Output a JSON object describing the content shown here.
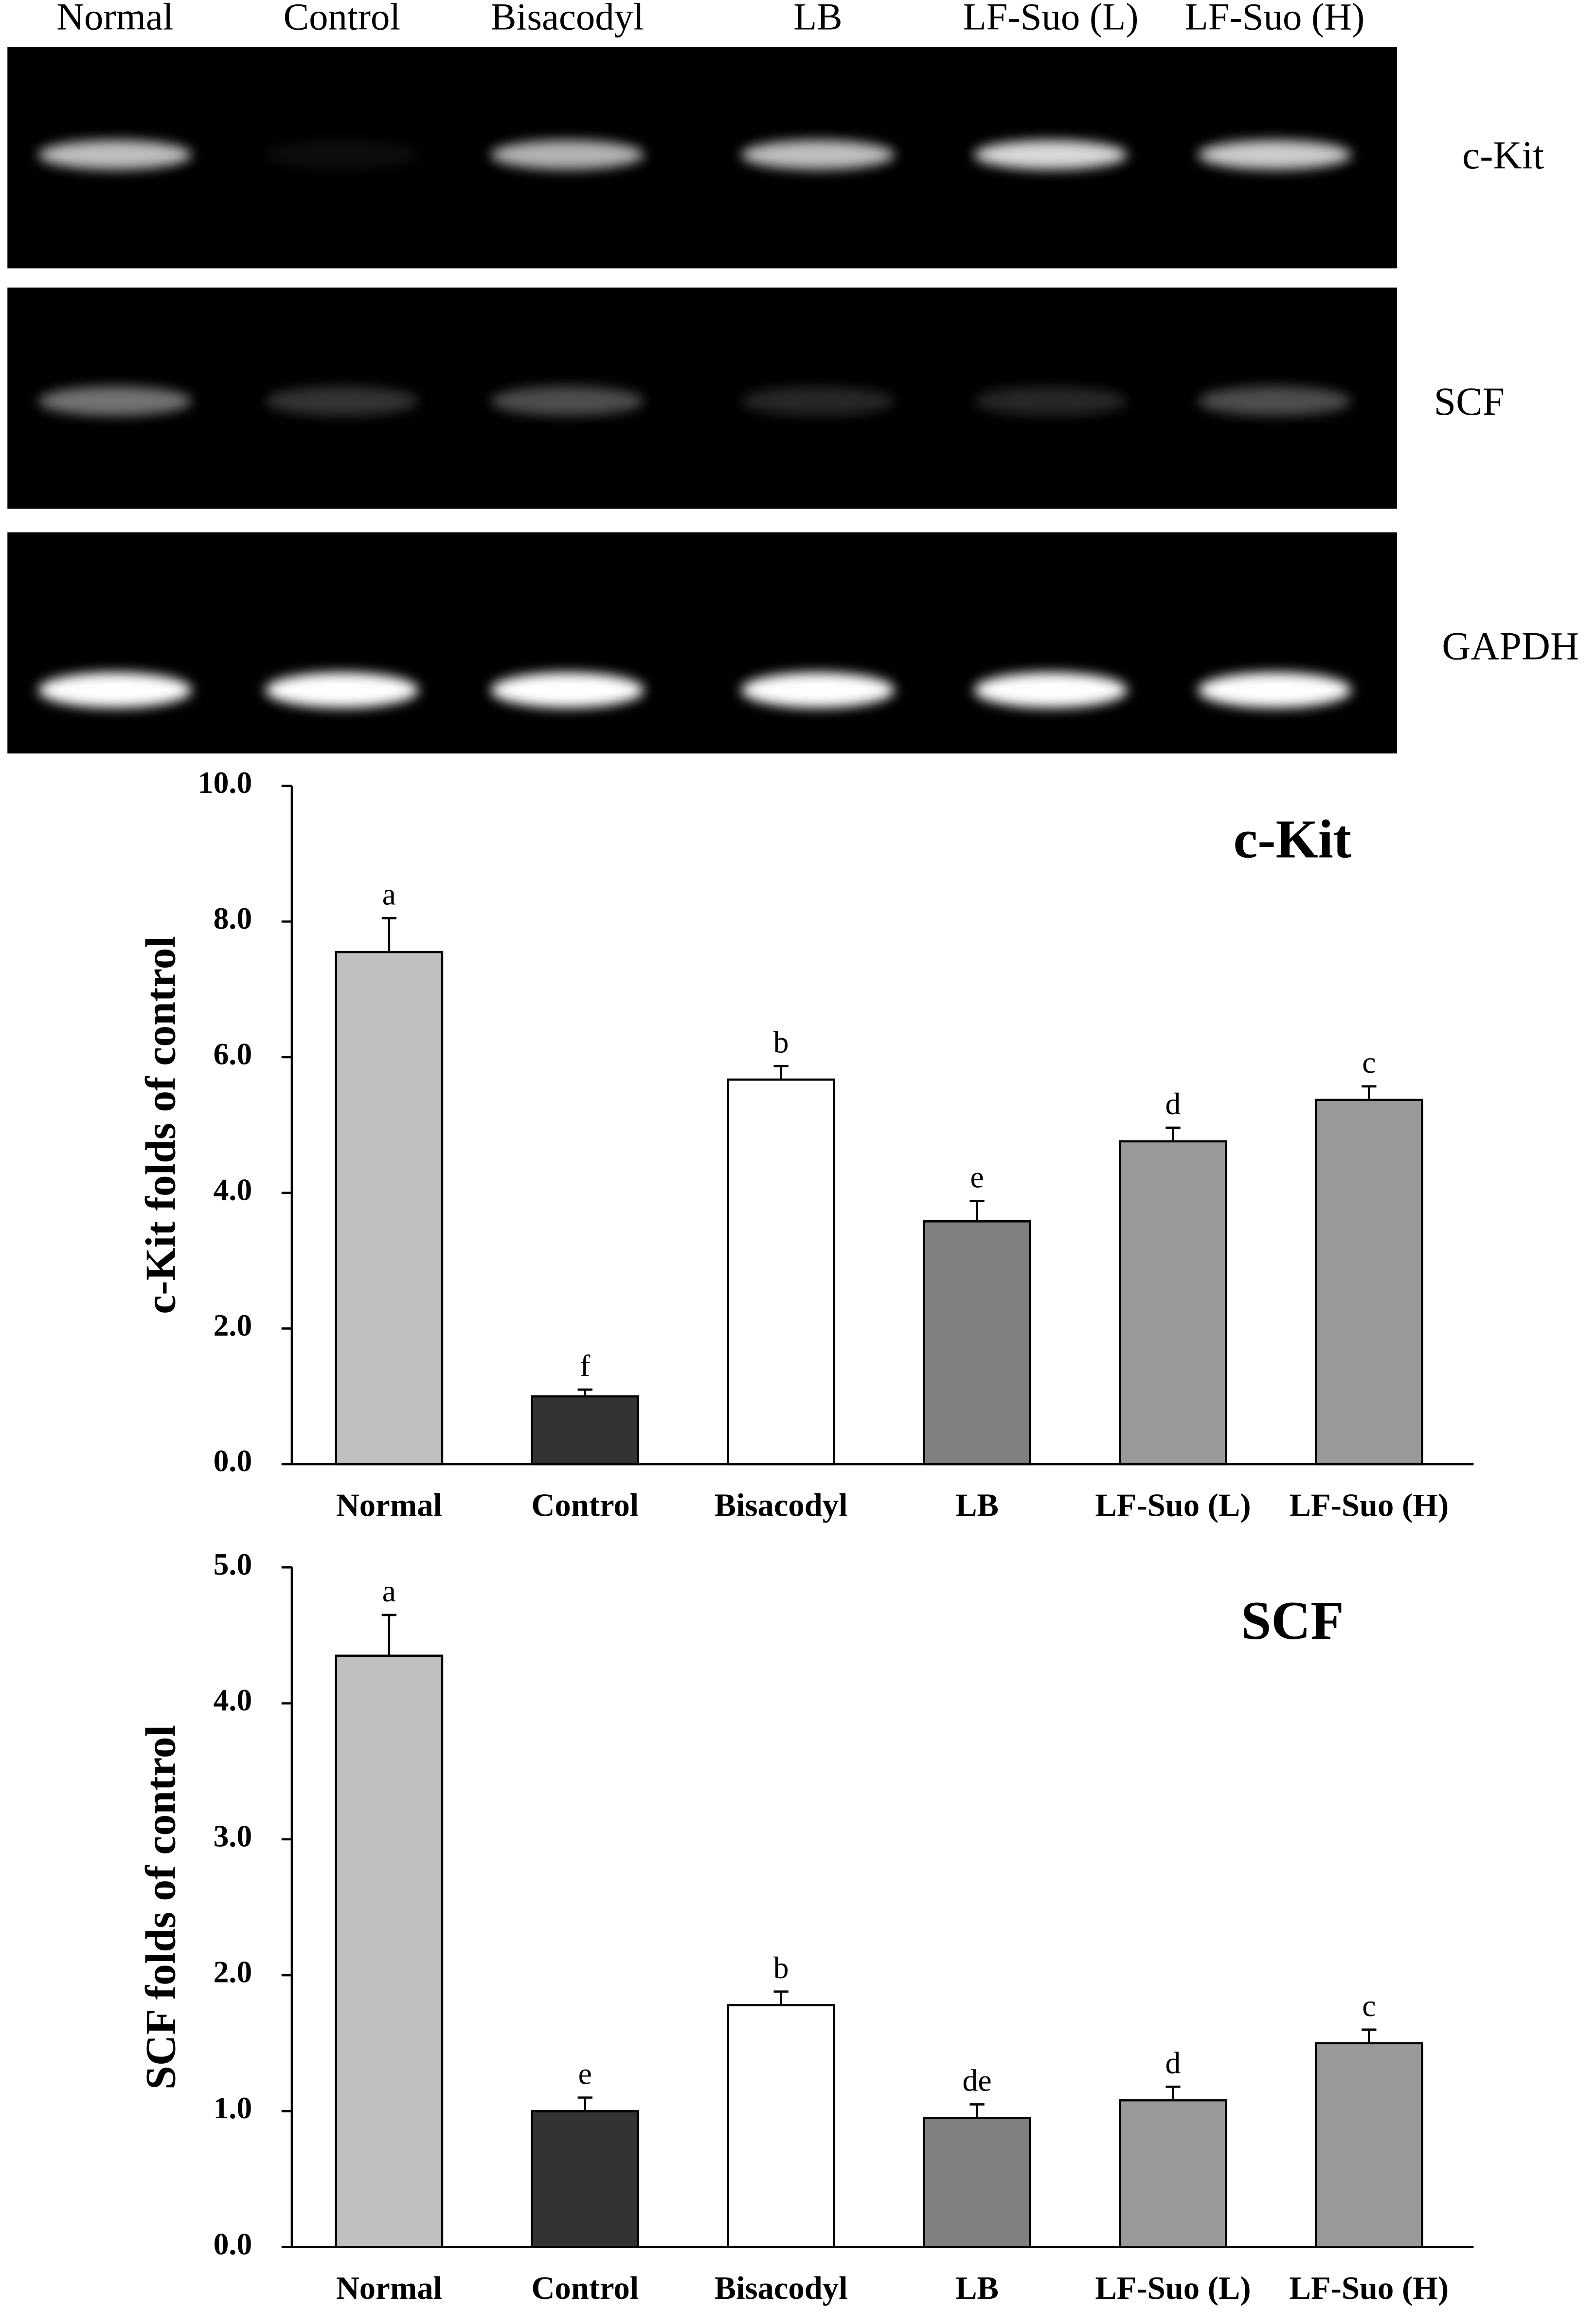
{
  "gel": {
    "lanes": [
      "Normal",
      "Control",
      "Bisacodyl",
      "LB",
      "LF-Suo (L)",
      "LF-Suo (H)"
    ],
    "rows": [
      "c-Kit",
      "SCF",
      "GAPDH"
    ]
  },
  "chart_data": [
    {
      "type": "bar",
      "title": "c-Kit",
      "y_label": "c-Kit folds of control",
      "categories": [
        "Normal",
        "Control",
        "Bisacodyl",
        "LB",
        "LF-Suo (L)",
        "LF-Suo (H)"
      ],
      "values": [
        7.55,
        1.0,
        5.67,
        3.58,
        4.76,
        5.37
      ],
      "errors": [
        0.5,
        0.1,
        0.2,
        0.3,
        0.2,
        0.2
      ],
      "annotations": [
        "a",
        "f",
        "b",
        "e",
        "d",
        "c"
      ],
      "colors": [
        "#c0c0c0",
        "#333333",
        "#ffffff",
        "#808080",
        "#999999",
        "#999999"
      ],
      "ylim": [
        0,
        10
      ],
      "yticks": [
        {
          "value": 0,
          "label": "0.0"
        },
        {
          "value": 2,
          "label": "2.0"
        },
        {
          "value": 4,
          "label": "4.0"
        },
        {
          "value": 6,
          "label": "6.0"
        },
        {
          "value": 8,
          "label": "8.0"
        },
        {
          "value": 10,
          "label": "10.0"
        }
      ],
      "grid": false
    },
    {
      "type": "bar",
      "title": "SCF",
      "y_label": "SCF folds of control",
      "categories": [
        "Normal",
        "Control",
        "Bisacodyl",
        "LB",
        "LF-Suo (L)",
        "LF-Suo (H)"
      ],
      "values": [
        4.35,
        1.0,
        1.78,
        0.95,
        1.08,
        1.5
      ],
      "errors": [
        0.3,
        0.1,
        0.1,
        0.1,
        0.1,
        0.1
      ],
      "annotations": [
        "a",
        "e",
        "b",
        "de",
        "d",
        "c"
      ],
      "colors": [
        "#c0c0c0",
        "#333333",
        "#ffffff",
        "#808080",
        "#999999",
        "#999999"
      ],
      "ylim": [
        0,
        5
      ],
      "yticks": [
        {
          "value": 0,
          "label": "0.0"
        },
        {
          "value": 1,
          "label": "1.0"
        },
        {
          "value": 2,
          "label": "2.0"
        },
        {
          "value": 3,
          "label": "3.0"
        },
        {
          "value": 4,
          "label": "4.0"
        },
        {
          "value": 5,
          "label": "5.0"
        }
      ],
      "grid": false
    }
  ]
}
